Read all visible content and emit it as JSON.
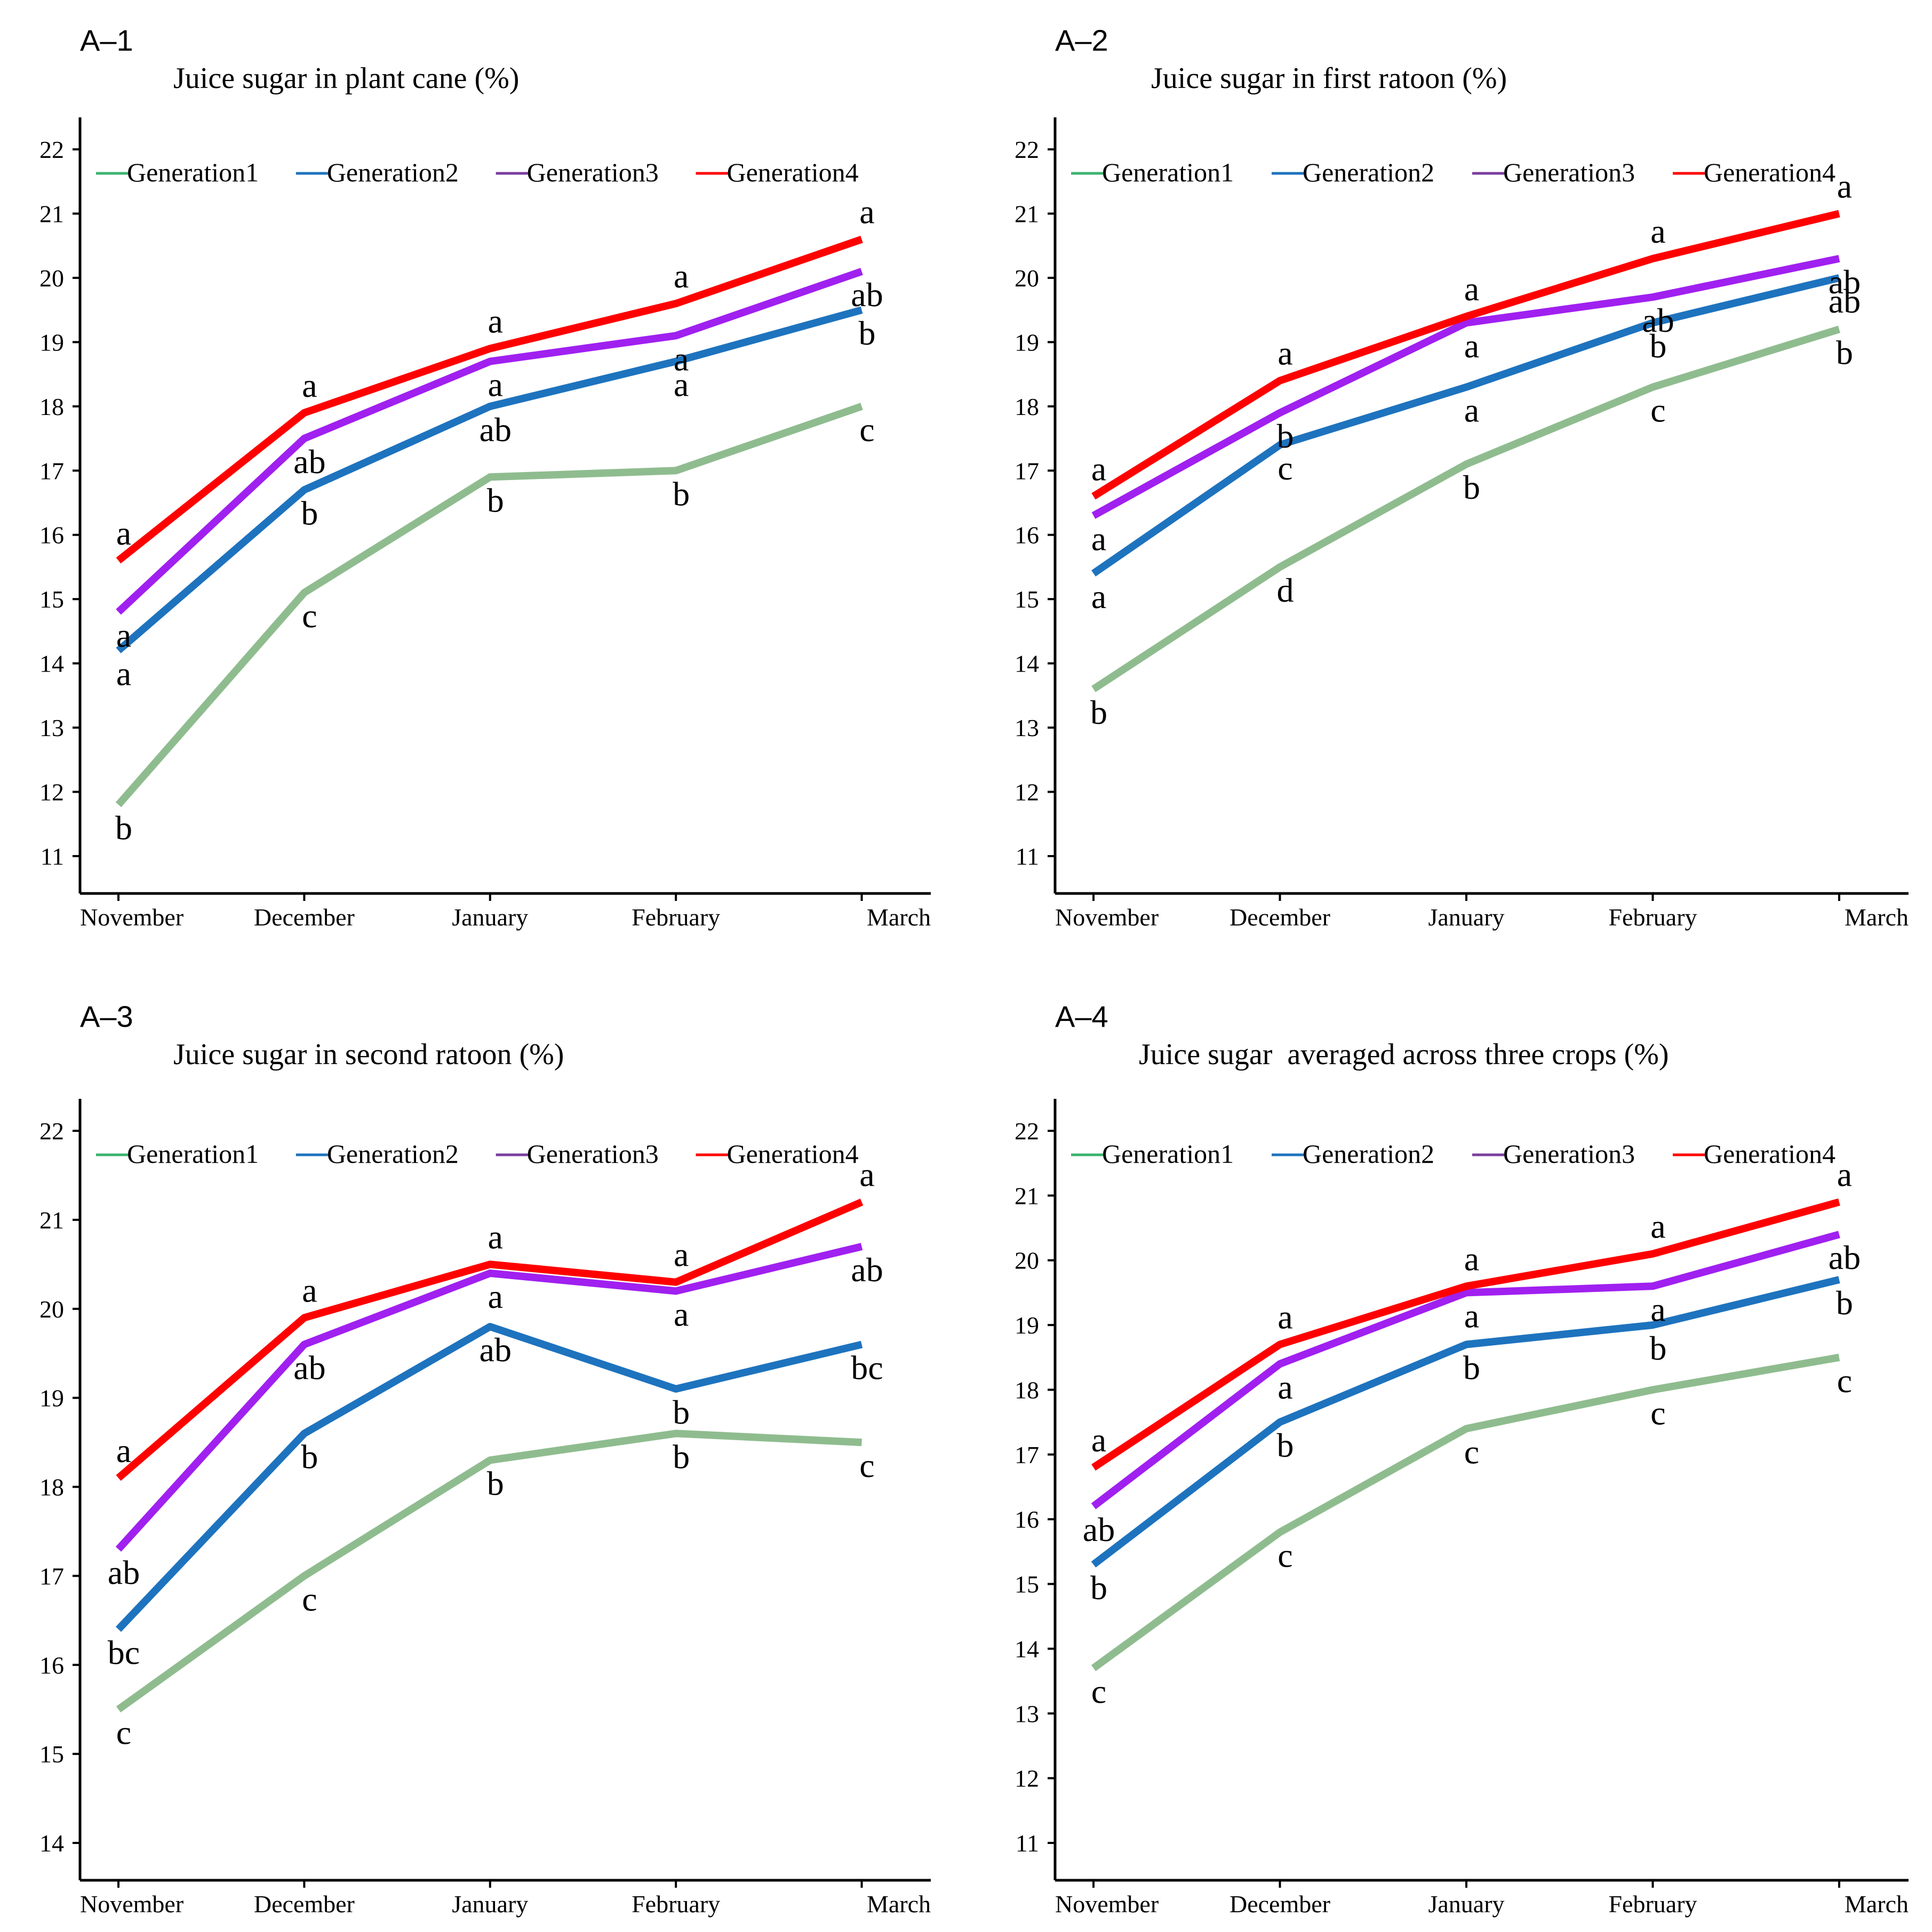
{
  "chart_data": [
    {
      "type": "line",
      "panel_label": "A–1",
      "title": "Juice sugar in plant cane (%)",
      "categories": [
        "November",
        "December",
        "January",
        "February",
        "March"
      ],
      "ylim": [
        11,
        22
      ],
      "yticks": [
        11,
        12,
        13,
        14,
        15,
        16,
        17,
        18,
        19,
        20,
        21,
        22
      ],
      "legend_position": "top",
      "grid": false,
      "series": [
        {
          "name": "Generation1",
          "color": "#8fbc8f",
          "legend_color": "#3cb371",
          "values": [
            11.8,
            15.1,
            16.9,
            17.0,
            18.0
          ],
          "labels": [
            "b",
            "c",
            "b",
            "b",
            "c"
          ]
        },
        {
          "name": "Generation2",
          "color": "#1e73be",
          "legend_color": "#1e73be",
          "values": [
            14.2,
            16.7,
            18.0,
            18.7,
            19.5
          ],
          "labels": [
            "a",
            "b",
            "ab",
            "a",
            "b"
          ]
        },
        {
          "name": "Generation3",
          "color": "#a020f0",
          "legend_color": "#7a3e9d",
          "values": [
            14.8,
            17.5,
            18.7,
            19.1,
            20.1
          ],
          "labels": [
            "a",
            "ab",
            "a",
            "a",
            "ab"
          ]
        },
        {
          "name": "Generation4",
          "color": "#ff0000",
          "legend_color": "#ff0000",
          "values": [
            15.6,
            17.9,
            18.9,
            19.6,
            20.6
          ],
          "labels": [
            "a",
            "a",
            "a",
            "a",
            "a"
          ]
        }
      ]
    },
    {
      "type": "line",
      "panel_label": "A–2",
      "title": "Juice sugar in first ratoon (%)",
      "categories": [
        "November",
        "December",
        "January",
        "February",
        "March"
      ],
      "ylim": [
        11,
        22
      ],
      "yticks": [
        11,
        12,
        13,
        14,
        15,
        16,
        17,
        18,
        19,
        20,
        21,
        22
      ],
      "legend_position": "top",
      "grid": false,
      "series": [
        {
          "name": "Generation1",
          "color": "#8fbc8f",
          "legend_color": "#3cb371",
          "values": [
            13.6,
            15.5,
            17.1,
            18.3,
            19.2
          ],
          "labels": [
            "b",
            "d",
            "b",
            "c",
            "b"
          ]
        },
        {
          "name": "Generation2",
          "color": "#1e73be",
          "legend_color": "#1e73be",
          "values": [
            15.4,
            17.4,
            18.3,
            19.3,
            20.0
          ],
          "labels": [
            "a",
            "c",
            "a",
            "b",
            "ab"
          ]
        },
        {
          "name": "Generation3",
          "color": "#a020f0",
          "legend_color": "#7a3e9d",
          "values": [
            16.3,
            17.9,
            19.3,
            19.7,
            20.3
          ],
          "labels": [
            "a",
            "b",
            "a",
            "ab",
            "ab"
          ]
        },
        {
          "name": "Generation4",
          "color": "#ff0000",
          "legend_color": "#ff0000",
          "values": [
            16.6,
            18.4,
            19.4,
            20.3,
            21.0
          ],
          "labels": [
            "a",
            "a",
            "a",
            "a",
            "a"
          ]
        }
      ]
    },
    {
      "type": "line",
      "panel_label": "A–3",
      "title": "Juice sugar in second ratoon (%)",
      "categories": [
        "November",
        "December",
        "January",
        "February",
        "March"
      ],
      "ylim": [
        14,
        22
      ],
      "yticks": [
        14,
        15,
        16,
        17,
        18,
        19,
        20,
        21,
        22
      ],
      "legend_position": "top",
      "grid": false,
      "series": [
        {
          "name": "Generation1",
          "color": "#8fbc8f",
          "legend_color": "#3cb371",
          "values": [
            15.5,
            17.0,
            18.3,
            18.6,
            18.5
          ],
          "labels": [
            "c",
            "c",
            "b",
            "b",
            "c"
          ]
        },
        {
          "name": "Generation2",
          "color": "#1e73be",
          "legend_color": "#1e73be",
          "values": [
            16.4,
            18.6,
            19.8,
            19.1,
            19.6
          ],
          "labels": [
            "bc",
            "b",
            "ab",
            "b",
            "bc"
          ]
        },
        {
          "name": "Generation3",
          "color": "#a020f0",
          "legend_color": "#7a3e9d",
          "values": [
            17.3,
            19.6,
            20.4,
            20.2,
            20.7
          ],
          "labels": [
            "ab",
            "ab",
            "a",
            "a",
            "ab"
          ]
        },
        {
          "name": "Generation4",
          "color": "#ff0000",
          "legend_color": "#ff0000",
          "values": [
            18.1,
            19.9,
            20.5,
            20.3,
            21.2
          ],
          "labels": [
            "a",
            "a",
            "a",
            "a",
            "a"
          ]
        }
      ]
    },
    {
      "type": "line",
      "panel_label": "A–4",
      "title": "Juice sugar  averaged across three crops (%)",
      "categories": [
        "November",
        "December",
        "January",
        "February",
        "March"
      ],
      "ylim": [
        11,
        22
      ],
      "yticks": [
        11,
        12,
        13,
        14,
        15,
        16,
        17,
        18,
        19,
        20,
        21,
        22
      ],
      "legend_position": "top",
      "grid": false,
      "series": [
        {
          "name": "Generation1",
          "color": "#8fbc8f",
          "legend_color": "#3cb371",
          "values": [
            13.7,
            15.8,
            17.4,
            18.0,
            18.5
          ],
          "labels": [
            "c",
            "c",
            "c",
            "c",
            "c"
          ]
        },
        {
          "name": "Generation2",
          "color": "#1e73be",
          "legend_color": "#1e73be",
          "values": [
            15.3,
            17.5,
            18.7,
            19.0,
            19.7
          ],
          "labels": [
            "b",
            "b",
            "b",
            "b",
            "b"
          ]
        },
        {
          "name": "Generation3",
          "color": "#a020f0",
          "legend_color": "#7a3e9d",
          "values": [
            16.2,
            18.4,
            19.5,
            19.6,
            20.4
          ],
          "labels": [
            "ab",
            "a",
            "a",
            "a",
            "ab"
          ]
        },
        {
          "name": "Generation4",
          "color": "#ff0000",
          "legend_color": "#ff0000",
          "values": [
            16.8,
            18.7,
            19.6,
            20.1,
            20.9
          ],
          "labels": [
            "a",
            "a",
            "a",
            "a",
            "a"
          ]
        }
      ]
    }
  ]
}
